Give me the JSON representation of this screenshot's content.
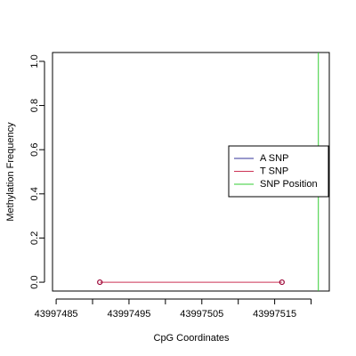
{
  "chart_data": {
    "type": "line",
    "title": "",
    "xlabel": "CpG Coordinates",
    "ylabel": "Methylation Frequency",
    "xlim": [
      43997484.5,
      43997522.5
    ],
    "ylim": [
      -0.04,
      1.04
    ],
    "x_ticks": [
      43997485,
      43997490,
      43997495,
      43997500,
      43997505,
      43997510,
      43997515,
      43997520
    ],
    "x_tick_labels": [
      "43997485",
      "",
      "43997495",
      "",
      "43997505",
      "",
      "43997515",
      ""
    ],
    "y_ticks": [
      0.0,
      0.2,
      0.4,
      0.6,
      0.8,
      1.0
    ],
    "y_tick_labels": [
      "0.0",
      "0.2",
      "0.4",
      "0.6",
      "0.8",
      "1.0"
    ],
    "series": [
      {
        "name": "T SNP",
        "color": "#cc3355",
        "x": [
          43997491,
          43997516
        ],
        "y": [
          0.0,
          0.0
        ]
      }
    ],
    "point_color": "#990033",
    "snp_position": {
      "x": 43997521,
      "color": "#33cc33"
    },
    "legend": {
      "position": "right",
      "entries": [
        {
          "label": "A SNP",
          "color": "#333399"
        },
        {
          "label": "T SNP",
          "color": "#cc3355"
        },
        {
          "label": "SNP Position",
          "color": "#33cc33"
        }
      ]
    },
    "grid": false
  }
}
